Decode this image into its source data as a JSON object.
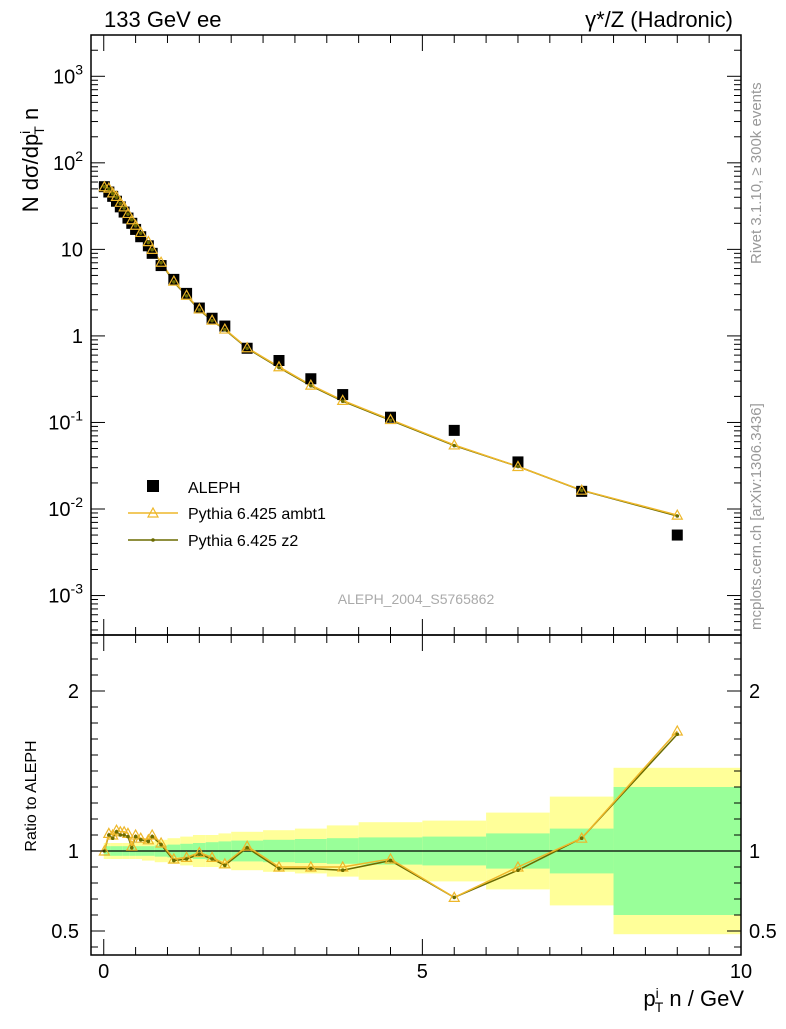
{
  "header": {
    "left": "133 GeV ee",
    "right": "γ*/Z (Hadronic)"
  },
  "side_labels": {
    "rivet": "Rivet 3.1.10, ≥ 300k events",
    "mcplots": "mcplots.cern.ch [arXiv:1306.3436]"
  },
  "watermark": "ALEPH_2004_S5765862",
  "chart_data": [
    {
      "type": "scatter",
      "panel": "main",
      "yscale": "log",
      "ylabel": "N dσ/dp_T^i n",
      "xlim": [
        -0.2,
        10
      ],
      "ylim": [
        0.00035,
        3000
      ],
      "ytick_labels": [
        "10^-3",
        "10^-2",
        "10^-1",
        "1",
        "10",
        "10^2",
        "10^3"
      ],
      "x": [
        0.01,
        0.08,
        0.14,
        0.2,
        0.26,
        0.32,
        0.38,
        0.44,
        0.5,
        0.58,
        0.7,
        0.76,
        0.9,
        1.1,
        1.3,
        1.5,
        1.7,
        1.9,
        2.25,
        2.75,
        3.25,
        3.75,
        4.5,
        5.5,
        6.5,
        7.5,
        9.0
      ],
      "series": [
        {
          "name": "ALEPH",
          "values": [
            53,
            46,
            41,
            36,
            31,
            27,
            23,
            20,
            17,
            14,
            11,
            9.0,
            6.5,
            4.5,
            3.1,
            2.1,
            1.6,
            1.3,
            0.72,
            0.52,
            0.32,
            0.21,
            0.115,
            0.081,
            0.035,
            0.016,
            0.005
          ],
          "color": "#000000"
        },
        {
          "name": "Pythia 6.425 ambt1",
          "values": [
            53,
            51,
            45,
            41,
            35,
            31,
            26,
            22,
            19,
            15.7,
            12.3,
            10.0,
            7.1,
            4.3,
            2.95,
            2.05,
            1.52,
            1.2,
            0.73,
            0.44,
            0.27,
            0.18,
            0.108,
            0.055,
            0.031,
            0.0165,
            0.0085
          ],
          "color": "#eeb72a"
        },
        {
          "name": "Pythia 6.425 z2",
          "values": [
            53,
            50,
            44,
            40,
            34,
            30,
            25.5,
            22,
            18.7,
            15.4,
            12.0,
            9.9,
            7.0,
            4.2,
            2.9,
            2.0,
            1.5,
            1.18,
            0.72,
            0.43,
            0.265,
            0.176,
            0.106,
            0.054,
            0.031,
            0.0164,
            0.0083
          ],
          "color": "#6b6b00"
        }
      ]
    },
    {
      "type": "line",
      "panel": "ratio",
      "ylabel": "Ratio to ALEPH",
      "xlabel": "p_T^i n / GeV",
      "xlim": [
        -0.2,
        10
      ],
      "ylim": [
        0.35,
        2.35
      ],
      "ytick_labels": [
        "0.5",
        "1",
        "2"
      ],
      "xtick_labels": [
        "0",
        "5",
        "10"
      ],
      "x": [
        0.01,
        0.08,
        0.14,
        0.2,
        0.26,
        0.32,
        0.38,
        0.44,
        0.5,
        0.58,
        0.7,
        0.76,
        0.9,
        1.1,
        1.3,
        1.5,
        1.7,
        1.9,
        2.25,
        2.75,
        3.25,
        3.75,
        4.5,
        5.5,
        6.5,
        7.5,
        9.0
      ],
      "series": [
        {
          "name": "Pythia 6.425 ambt1",
          "values": [
            1.0,
            1.11,
            1.1,
            1.13,
            1.12,
            1.12,
            1.11,
            1.03,
            1.1,
            1.08,
            1.07,
            1.1,
            1.05,
            0.95,
            0.96,
            0.99,
            0.96,
            0.92,
            1.03,
            0.9,
            0.9,
            0.9,
            0.95,
            0.71,
            0.9,
            1.08,
            1.75
          ],
          "color": "#eeb72a"
        },
        {
          "name": "Pythia 6.425 z2",
          "values": [
            1.0,
            1.1,
            1.08,
            1.12,
            1.1,
            1.1,
            1.09,
            1.02,
            1.09,
            1.07,
            1.06,
            1.09,
            1.04,
            0.94,
            0.95,
            0.98,
            0.95,
            0.91,
            1.02,
            0.89,
            0.89,
            0.88,
            0.94,
            0.71,
            0.88,
            1.08,
            1.73
          ],
          "color": "#6b6b00"
        }
      ],
      "bands": {
        "edges": [
          0.0,
          0.1,
          0.2,
          0.3,
          0.4,
          0.5,
          0.6,
          0.8,
          1.0,
          1.2,
          1.4,
          1.6,
          1.8,
          2.0,
          2.5,
          3.0,
          3.5,
          4.0,
          5.0,
          6.0,
          7.0,
          8.0,
          10.0
        ],
        "stat_half": [
          0.03,
          0.03,
          0.03,
          0.03,
          0.03,
          0.03,
          0.03,
          0.035,
          0.04,
          0.045,
          0.05,
          0.055,
          0.06,
          0.065,
          0.07,
          0.075,
          0.08,
          0.085,
          0.09,
          0.11,
          0.14,
          0.4,
          0.38
        ],
        "total_half": [
          0.05,
          0.05,
          0.05,
          0.05,
          0.05,
          0.05,
          0.06,
          0.07,
          0.08,
          0.09,
          0.1,
          0.1,
          0.11,
          0.12,
          0.13,
          0.14,
          0.16,
          0.18,
          0.19,
          0.24,
          0.34,
          0.52,
          0.75
        ],
        "total_low_cap": [
          0.05,
          0.05,
          0.05,
          0.05,
          0.05,
          0.05,
          0.06,
          0.07,
          0.08,
          0.09,
          0.1,
          0.1,
          0.11,
          0.12,
          0.13,
          0.14,
          0.16,
          0.18,
          0.19,
          0.24,
          0.34,
          0.52,
          0.75
        ],
        "stat_color": "#99ff99",
        "total_color": "#ffff99"
      }
    }
  ]
}
